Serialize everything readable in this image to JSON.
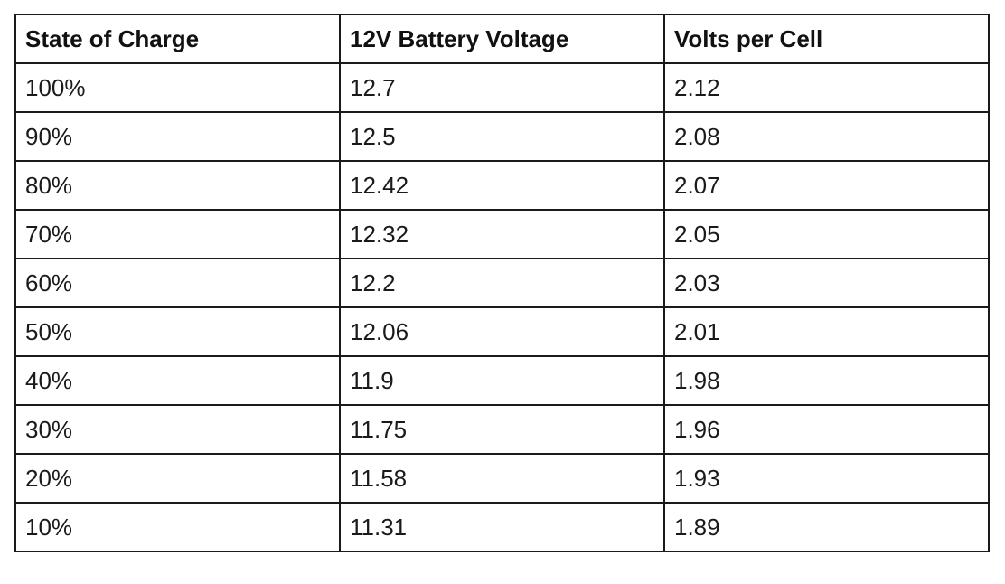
{
  "table": {
    "headers": [
      "State of Charge",
      "12V Battery Voltage",
      "Volts per Cell"
    ],
    "rows": [
      [
        "100%",
        "12.7",
        "2.12"
      ],
      [
        "90%",
        "12.5",
        "2.08"
      ],
      [
        "80%",
        "12.42",
        "2.07"
      ],
      [
        "70%",
        "12.32",
        "2.05"
      ],
      [
        "60%",
        "12.2",
        "2.03"
      ],
      [
        "50%",
        "12.06",
        "2.01"
      ],
      [
        "40%",
        "11.9",
        "1.98"
      ],
      [
        "30%",
        "11.75",
        "1.96"
      ],
      [
        "20%",
        "11.58",
        "1.93"
      ],
      [
        "10%",
        "11.31",
        "1.89"
      ]
    ]
  }
}
